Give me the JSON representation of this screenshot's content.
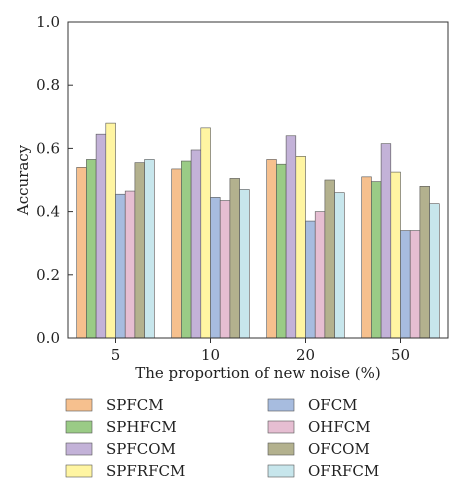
{
  "chart_data": {
    "type": "bar",
    "xlabel": "The proportion of new noise (%)",
    "ylabel": "Accuracy",
    "ylim": [
      0.0,
      1.0
    ],
    "yticks": [
      "0.0",
      "0.2",
      "0.4",
      "0.6",
      "0.8",
      "1.0"
    ],
    "categories": [
      "5",
      "10",
      "20",
      "50"
    ],
    "grid": false,
    "legend_position": "bottom",
    "series": [
      {
        "name": "SPFCM",
        "color": "#F6C08E",
        "values": [
          0.54,
          0.535,
          0.565,
          0.51
        ]
      },
      {
        "name": "SPHFCM",
        "color": "#9ACB86",
        "values": [
          0.565,
          0.56,
          0.55,
          0.495
        ]
      },
      {
        "name": "SPFCOM",
        "color": "#C3B2D8",
        "values": [
          0.645,
          0.595,
          0.64,
          0.615
        ]
      },
      {
        "name": "SPFRFCM",
        "color": "#FFF5A2",
        "values": [
          0.68,
          0.665,
          0.575,
          0.525
        ]
      },
      {
        "name": "OFCM",
        "color": "#A7BCDF",
        "values": [
          0.455,
          0.445,
          0.37,
          0.34
        ]
      },
      {
        "name": "OHFCM",
        "color": "#E6BED2",
        "values": [
          0.465,
          0.435,
          0.4,
          0.34
        ]
      },
      {
        "name": "OFCOM",
        "color": "#B3B18E",
        "values": [
          0.555,
          0.505,
          0.5,
          0.48
        ]
      },
      {
        "name": "OFRFCM",
        "color": "#C7E6EC",
        "values": [
          0.565,
          0.47,
          0.46,
          0.425
        ]
      }
    ]
  }
}
